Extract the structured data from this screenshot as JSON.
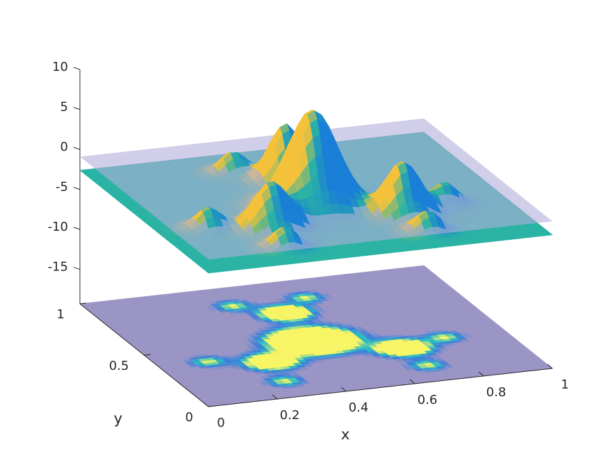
{
  "chart_data": {
    "type": "surface3d",
    "xlabel": "x",
    "ylabel": "y",
    "xlim": [
      0,
      1
    ],
    "ylim": [
      0,
      1
    ],
    "zlim": [
      -19.3,
      10
    ],
    "xticks": [
      0,
      0.2,
      0.4,
      0.6,
      0.8,
      1
    ],
    "yticks": [
      0,
      0.5,
      1
    ],
    "zticks": [
      10,
      5,
      0,
      -5,
      -10,
      -15
    ],
    "base_z": -2.6,
    "plane_z": -0.9,
    "peaks": [
      {
        "x": 0.477,
        "y": 0.465,
        "z": 9.6,
        "spread": 0.07
      },
      {
        "x": 0.495,
        "y": 0.728,
        "z": 4.35,
        "spread": 0.045
      },
      {
        "x": 0.685,
        "y": 0.32,
        "z": 4.0,
        "spread": 0.05
      },
      {
        "x": 0.304,
        "y": 0.326,
        "z": 3.1,
        "spread": 0.05
      },
      {
        "x": 0.384,
        "y": 0.837,
        "z": 0,
        "spread": 0.035
      },
      {
        "x": 0.596,
        "y": 0.839,
        "z": 0,
        "spread": 0.035
      },
      {
        "x": 0.144,
        "y": 0.386,
        "z": 0,
        "spread": 0.035
      },
      {
        "x": 0.277,
        "y": 0.147,
        "z": 0,
        "spread": 0.035
      },
      {
        "x": 0.825,
        "y": 0.369,
        "z": 0,
        "spread": 0.035
      },
      {
        "x": 0.692,
        "y": 0.148,
        "z": 0,
        "spread": 0.035
      }
    ]
  }
}
